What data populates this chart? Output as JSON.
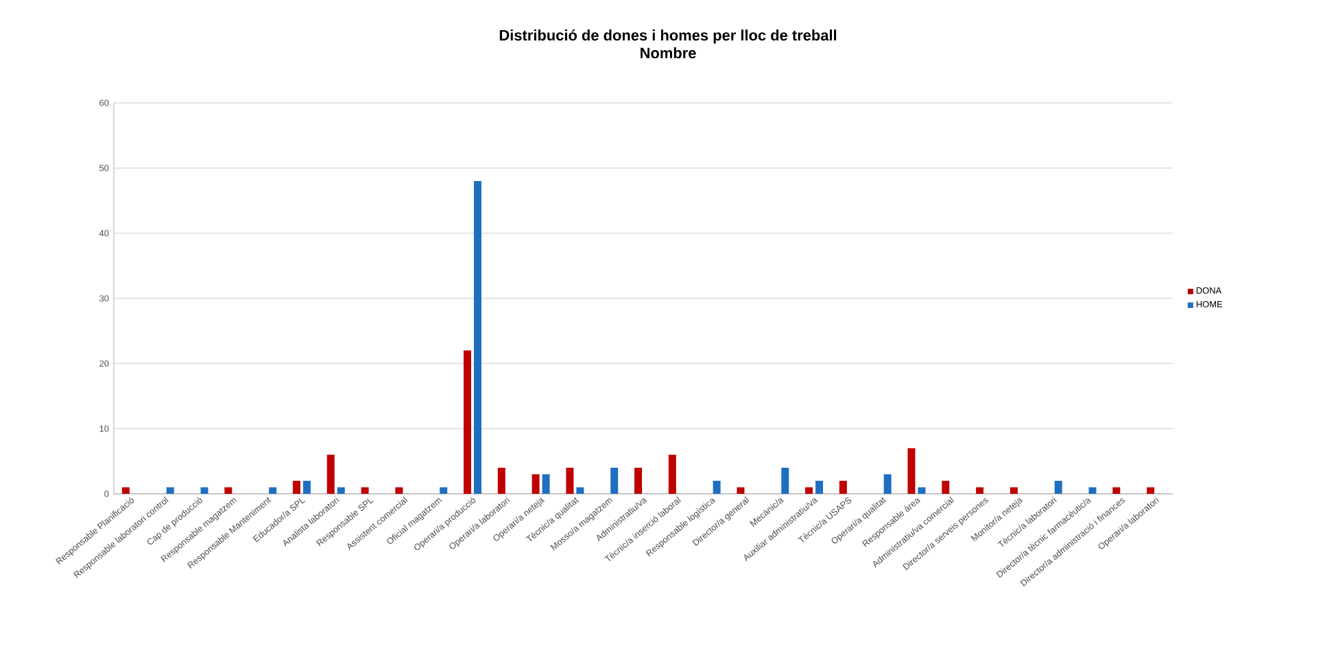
{
  "chart_data": {
    "type": "bar",
    "title": "Distribució de dones i homes per lloc de treball",
    "subtitle": "Nombre",
    "categories": [
      "Responsable Planificació",
      "Responsable laboratori control",
      "Cap de producció",
      "Responsable magatzem",
      "Responsable Manteniment",
      "Educador/a SPL",
      "Analista laboratori",
      "Responsable SPL",
      "Assistent comercial",
      "Oficial magatzem",
      "Operari/a producció",
      "Operari/a laboratori",
      "Operari/a neteja",
      "Tècnic/a qualitat",
      "Mosso/a magatzem",
      "Administratiu/va",
      "Tècnic/a inserció laboral",
      "Responsable logística",
      "Director/a general",
      "Mecànic/a",
      "Auxiliar administratiu/va",
      "Tècnic/a USAPS",
      "Operari/a qualitat",
      "Responsable àrea",
      "Administratiu/va comercial",
      "Director/a serveis persones",
      "Monitor/a neteja",
      "Tècnic/a laboratori",
      "Director/a tècnic farmacèutic/a",
      "Director/a administració i finances",
      "Operari/a laboratori"
    ],
    "series": [
      {
        "name": "DONA",
        "color": "#c00000",
        "values": [
          1,
          null,
          null,
          1,
          null,
          2,
          6,
          1,
          1,
          null,
          22,
          4,
          3,
          4,
          null,
          4,
          6,
          null,
          1,
          null,
          1,
          2,
          null,
          7,
          2,
          1,
          1,
          null,
          null,
          1,
          1
        ]
      },
      {
        "name": "HOME",
        "color": "#1f6fc0",
        "values": [
          null,
          1,
          1,
          null,
          1,
          2,
          1,
          null,
          null,
          1,
          48,
          null,
          3,
          1,
          4,
          null,
          null,
          2,
          null,
          4,
          2,
          null,
          3,
          1,
          null,
          null,
          null,
          2,
          1,
          null,
          null
        ]
      }
    ],
    "ylim": [
      0,
      60
    ],
    "yticks": [
      0,
      10,
      20,
      30,
      40,
      50,
      60
    ],
    "grid": "y",
    "legend": "right"
  }
}
